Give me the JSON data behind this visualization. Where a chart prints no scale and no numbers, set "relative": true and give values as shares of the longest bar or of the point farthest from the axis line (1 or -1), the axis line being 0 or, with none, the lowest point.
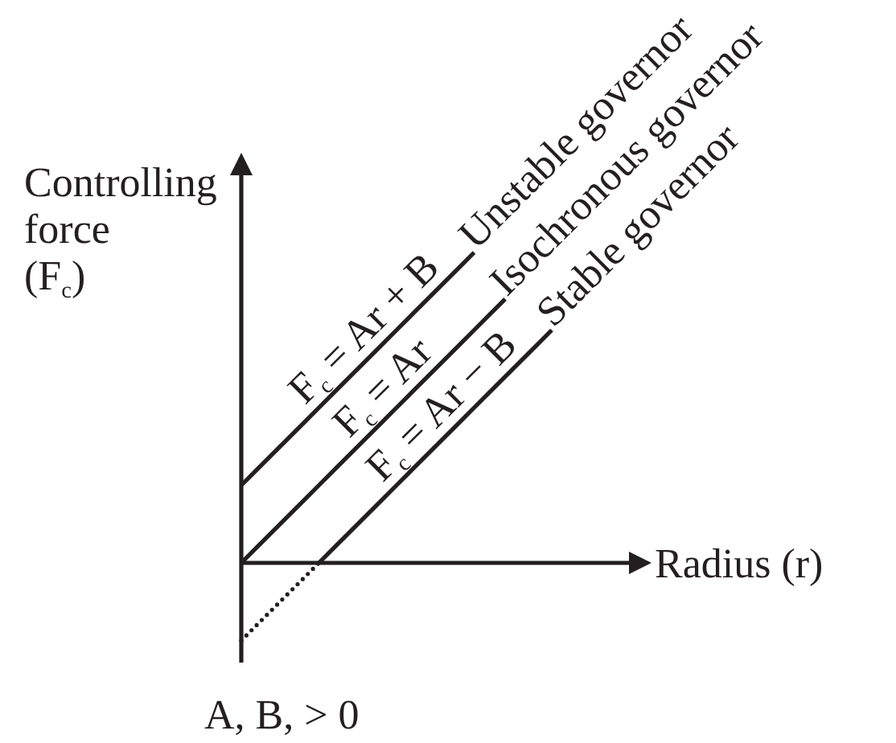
{
  "chart_data": {
    "type": "line",
    "relative": true,
    "line_style": "solid",
    "xlabel": "Radius (r)",
    "ylabel": "Controlling force (F$_{c}$)",
    "categories": [
      null,
      null,
      null,
      null,
      null,
      null,
      null,
      null,
      null,
      null,
      null,
      null,
      null,
      null,
      null,
      null,
      null,
      null,
      null,
      null,
      null
    ],
    "series": [
      {
        "name": "Unstable governor",
        "color": "#231f20",
        "values": [
          0.25,
          0.3,
          0.35,
          0.4,
          0.45,
          0.5,
          0.55,
          0.6,
          0.65,
          0.7,
          0.75,
          0.8,
          0.85,
          0.9,
          0.95,
          1,
          null,
          null,
          null,
          null,
          null
        ]
      },
      {
        "name": "Isochronous governor",
        "color": "#231f20",
        "values": [
          0,
          0.05,
          0.1,
          0.15,
          0.2,
          0.25,
          0.3,
          0.35,
          0.4,
          0.45,
          0.5,
          0.55,
          0.6,
          0.65,
          0.7,
          0.75,
          0.8,
          0.85,
          null,
          null,
          null
        ]
      },
      {
        "name": "Stable governor",
        "color": "#231f20",
        "values": [
          null,
          null,
          null,
          null,
          null,
          0,
          0.05,
          0.1,
          0.15,
          0.2,
          0.25,
          0.3,
          0.35,
          0.4,
          0.45,
          0.5,
          0.55,
          0.6,
          0.65,
          0.7,
          0.75
        ]
      },
      {
        "color": "#231f20",
        "line_style": "dotted",
        "values": [
          -0.25,
          -0.2,
          -0.15,
          -0.1,
          -0.05,
          0,
          null,
          null,
          null,
          null,
          null,
          null,
          null,
          null,
          null,
          null,
          null,
          null,
          null,
          null,
          null
        ]
      }
    ],
    "annotations": [
      "F$_{c}$ = Ar + B",
      "F$_{c}$ = Ar",
      "F$_{c}$ = Ar − B",
      "A, B, > 0"
    ]
  }
}
